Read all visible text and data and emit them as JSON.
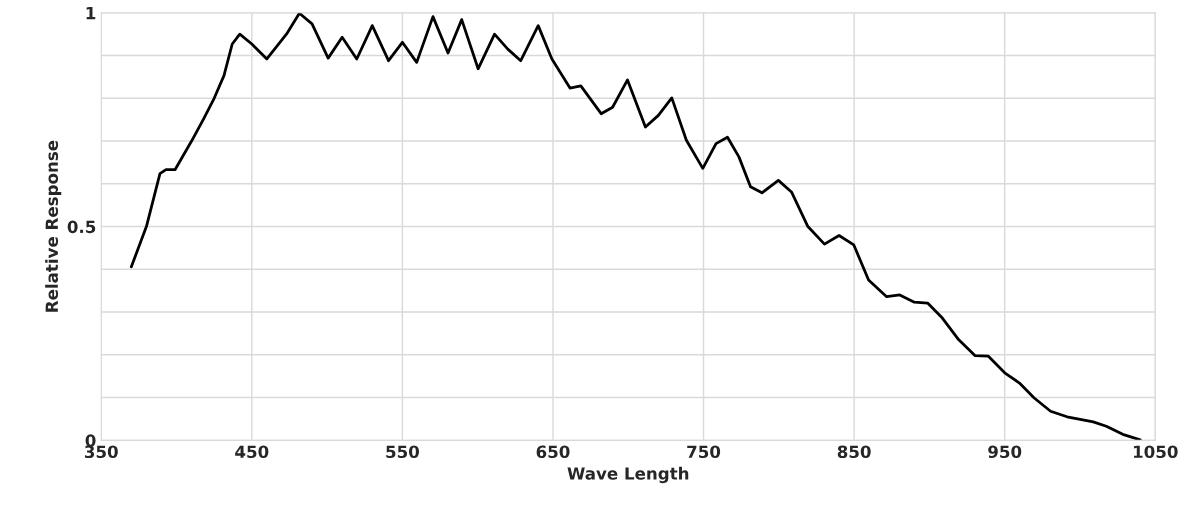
{
  "chart_data": {
    "type": "line",
    "xlabel": "Wave Length",
    "ylabel": "Relative Response",
    "x": [
      370,
      380,
      389,
      393,
      399,
      410,
      418,
      425,
      431.5,
      437,
      442,
      450,
      460,
      473,
      481.6,
      490,
      500.7,
      510,
      519.7,
      530,
      540.8,
      550,
      559.5,
      570.3,
      580.3,
      589.4,
      600.3,
      611.2,
      620,
      628.6,
      640.2,
      649.3,
      661.3,
      668.5,
      682,
      689.6,
      699.5,
      711.4,
      720,
      728.9,
      738.6,
      749.5,
      758.3,
      765.9,
      773.5,
      781.2,
      788.8,
      799.7,
      808.4,
      819.3,
      830.3,
      840,
      849.8,
      859.6,
      871.6,
      880.3,
      890,
      898.8,
      908.6,
      919.5,
      930.4,
      939,
      950,
      959.8,
      969.6,
      980.5,
      991.4,
      1008.8,
      1017.5,
      1028.4,
      1040
    ],
    "series": [
      {
        "color": "#000000",
        "values": [
          0.406,
          0.5,
          0.624,
          0.633,
          0.633,
          0.7,
          0.752,
          0.8,
          0.853,
          0.927,
          0.95,
          0.927,
          0.892,
          0.95,
          0.999,
          0.974,
          0.894,
          0.943,
          0.892,
          0.97,
          0.888,
          0.931,
          0.884,
          0.991,
          0.906,
          0.984,
          0.869,
          0.95,
          0.915,
          0.888,
          0.97,
          0.892,
          0.824,
          0.829,
          0.764,
          0.779,
          0.843,
          0.733,
          0.76,
          0.801,
          0.702,
          0.636,
          0.694,
          0.709,
          0.663,
          0.593,
          0.579,
          0.608,
          0.581,
          0.5,
          0.459,
          0.479,
          0.457,
          0.375,
          0.336,
          0.34,
          0.323,
          0.321,
          0.286,
          0.235,
          0.198,
          0.197,
          0.158,
          0.134,
          0.099,
          0.068,
          0.055,
          0.043,
          0.033,
          0.014,
          0.001
        ]
      }
    ],
    "xlim": [
      350,
      1050
    ],
    "xticks": [
      350,
      450,
      550,
      650,
      750,
      850,
      950,
      1050
    ],
    "ylim": [
      0,
      1
    ],
    "yticks": [
      0,
      {
        "value": 0.1,
        "label": null
      },
      {
        "value": 0.2,
        "label": null
      },
      {
        "value": 0.3,
        "label": null
      },
      {
        "value": 0.4,
        "label": null
      },
      0.5,
      {
        "value": 0.6,
        "label": null
      },
      {
        "value": 0.7,
        "label": null
      },
      {
        "value": 0.8,
        "label": null
      },
      {
        "value": 0.9,
        "label": null
      },
      1
    ],
    "grid": true,
    "marker": "none",
    "line_style": "solid",
    "legend": false
  }
}
